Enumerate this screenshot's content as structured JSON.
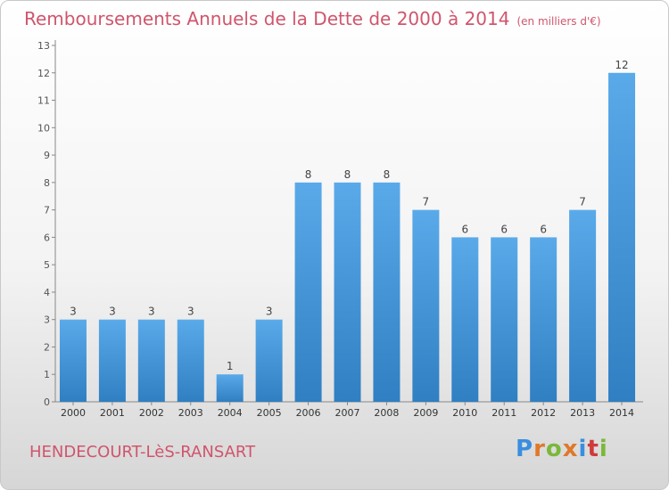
{
  "chart_data": {
    "type": "bar",
    "title": "Remboursements Annuels de la Dette de 2000 à 2014",
    "subtitle": "(en milliers d'€)",
    "categories": [
      "2000",
      "2001",
      "2002",
      "2003",
      "2004",
      "2005",
      "2006",
      "2007",
      "2008",
      "2009",
      "2010",
      "2011",
      "2012",
      "2013",
      "2014"
    ],
    "values": [
      3,
      3,
      3,
      3,
      1,
      3,
      8,
      8,
      8,
      7,
      6,
      6,
      6,
      7,
      12
    ],
    "yticks": [
      0,
      1,
      2,
      3,
      4,
      5,
      6,
      7,
      8,
      9,
      10,
      11,
      12,
      13
    ],
    "ylim": [
      0,
      13
    ],
    "grid": false,
    "bar_color": "#4a9be0"
  },
  "footer": {
    "city": "HENDECOURT-LèS-RANSART",
    "logo_letters": [
      "P",
      "r",
      "o",
      "x",
      "i",
      "t",
      "i"
    ],
    "logo_colors": [
      "#3a8ee0",
      "#e0782a",
      "#7ab83a",
      "#e0782a",
      "#3a8ee0",
      "#d03a3a",
      "#7ab83a"
    ]
  }
}
